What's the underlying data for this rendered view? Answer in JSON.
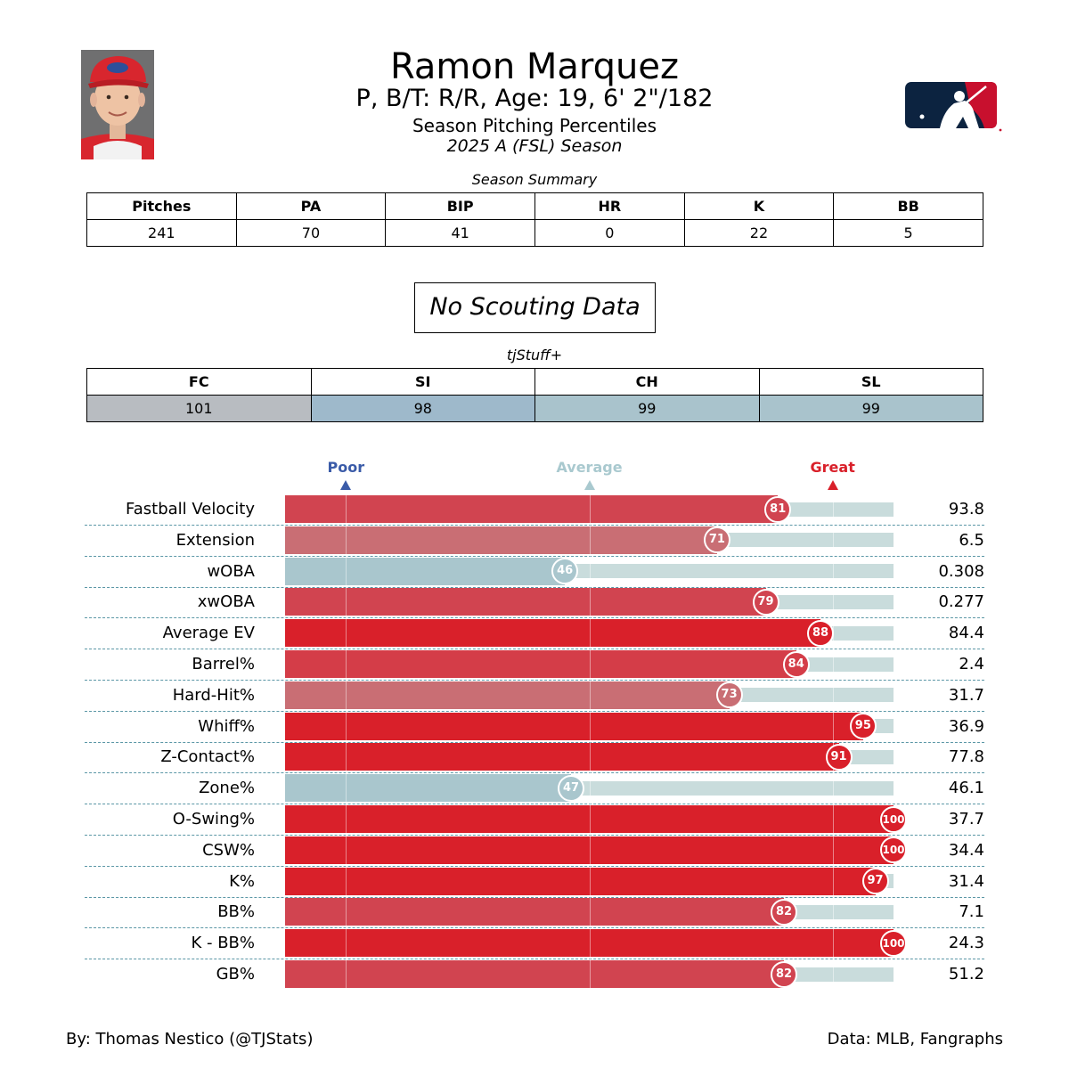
{
  "header": {
    "player_name": "Ramon Marquez",
    "bio_line": "P, B/T: R/R, Age: 19, 6' 2\"/182",
    "subtitle": "Season Pitching Percentiles",
    "season": "2025 A (FSL) Season",
    "photo_icon": "player-headshot",
    "logo_icon": "mlb-logo"
  },
  "season_summary": {
    "title": "Season Summary",
    "headers": [
      "Pitches",
      "PA",
      "BIP",
      "HR",
      "K",
      "BB"
    ],
    "values": [
      "241",
      "70",
      "41",
      "0",
      "22",
      "5"
    ]
  },
  "scouting": {
    "text": "No Scouting Data"
  },
  "tjstuff": {
    "title": "tjStuff+",
    "headers": [
      "FC",
      "SI",
      "CH",
      "SL"
    ],
    "values": [
      "101",
      "98",
      "99",
      "99"
    ],
    "colors": [
      "#b8bcc1",
      "#9eb9cb",
      "#a9c3cc",
      "#a9c3cc"
    ]
  },
  "legend": {
    "poor": "Poor",
    "average": "Average",
    "great": "Great",
    "colors": {
      "poor": "#3a5ba8",
      "average": "#a9c9cf",
      "great": "#d9202a"
    }
  },
  "chart_data": {
    "type": "bar",
    "orientation": "horizontal",
    "xlim": [
      0,
      100
    ],
    "reference_lines": [
      10,
      50,
      90
    ],
    "categories": [
      "Fastball Velocity",
      "Extension",
      "wOBA",
      "xwOBA",
      "Average EV",
      "Barrel%",
      "Hard-Hit%",
      "Whiff%",
      "Z-Contact%",
      "Zone%",
      "O-Swing%",
      "CSW%",
      "K%",
      "BB%",
      "K - BB%",
      "GB%"
    ],
    "percentiles": [
      81,
      71,
      46,
      79,
      88,
      84,
      73,
      95,
      91,
      47,
      100,
      100,
      97,
      82,
      100,
      82
    ],
    "stat_values": [
      "93.8",
      "6.5",
      "0.308",
      "0.277",
      "84.4",
      "2.4",
      "31.7",
      "36.9",
      "77.8",
      "46.1",
      "37.7",
      "34.4",
      "31.4",
      "7.1",
      "24.3",
      "51.2"
    ],
    "bar_colors": [
      "#d14450",
      "#c96e74",
      "#a9c6cd",
      "#d14450",
      "#d9202a",
      "#d43d48",
      "#c96e74",
      "#d9202a",
      "#d9202a",
      "#a9c6cd",
      "#d9202a",
      "#d9202a",
      "#d9202a",
      "#d14450",
      "#d9202a",
      "#d14450"
    ],
    "track_color": "#c9dcdc"
  },
  "footer": {
    "credit": "By: Thomas Nestico (@TJStats)",
    "source": "Data: MLB, Fangraphs"
  }
}
